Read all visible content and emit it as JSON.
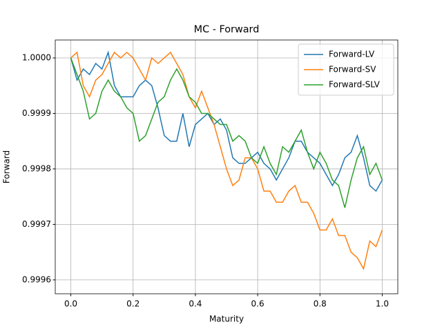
{
  "chart_data": {
    "type": "line",
    "title": "MC - Forward",
    "xlabel": "Maturity",
    "ylabel": "Forward",
    "x": [
      0,
      0.02,
      0.04,
      0.06,
      0.08,
      0.1,
      0.12,
      0.14,
      0.16,
      0.18,
      0.2,
      0.22,
      0.24,
      0.26,
      0.28,
      0.3,
      0.32,
      0.34,
      0.36,
      0.38,
      0.4,
      0.42,
      0.44,
      0.46,
      0.48,
      0.5,
      0.52,
      0.54,
      0.56,
      0.58,
      0.6,
      0.62,
      0.64,
      0.66,
      0.68,
      0.7,
      0.72,
      0.74,
      0.76,
      0.78,
      0.8,
      0.82,
      0.84,
      0.86,
      0.88,
      0.9,
      0.92,
      0.94,
      0.96,
      0.98,
      1
    ],
    "series": [
      {
        "name": "Forward-LV",
        "color": "#1f77b4",
        "values": [
          1.0,
          0.99996,
          0.99998,
          0.99997,
          0.99999,
          0.99998,
          1.00001,
          0.99995,
          0.99993,
          0.99993,
          0.99993,
          0.99995,
          0.99996,
          0.99995,
          0.99991,
          0.99986,
          0.99985,
          0.99985,
          0.9999,
          0.99984,
          0.99988,
          0.99989,
          0.9999,
          0.99988,
          0.99989,
          0.99987,
          0.99982,
          0.99981,
          0.99981,
          0.99982,
          0.99983,
          0.99981,
          0.9998,
          0.99978,
          0.9998,
          0.99982,
          0.99985,
          0.99985,
          0.99983,
          0.99982,
          0.99981,
          0.99979,
          0.99977,
          0.99979,
          0.99982,
          0.99983,
          0.99986,
          0.99982,
          0.99977,
          0.99976,
          0.99978
        ]
      },
      {
        "name": "Forward-SV",
        "color": "#ff7f0e",
        "values": [
          1.0,
          1.00001,
          0.99995,
          0.99993,
          0.99996,
          0.99997,
          0.99999,
          1.00001,
          1.0,
          1.00001,
          1.0,
          0.99998,
          0.99996,
          1.0,
          0.99999,
          1.0,
          1.00001,
          0.99999,
          0.99997,
          0.99993,
          0.99991,
          0.99994,
          0.99991,
          0.99988,
          0.99984,
          0.9998,
          0.99977,
          0.99978,
          0.99982,
          0.99982,
          0.9998,
          0.99976,
          0.99976,
          0.99974,
          0.99974,
          0.99976,
          0.99977,
          0.99974,
          0.99974,
          0.99972,
          0.99969,
          0.99969,
          0.99971,
          0.99968,
          0.99968,
          0.99965,
          0.99964,
          0.99962,
          0.99967,
          0.99966,
          0.99969
        ]
      },
      {
        "name": "Forward-SLV",
        "color": "#2ca02c",
        "values": [
          1.0,
          0.99997,
          0.99994,
          0.99989,
          0.9999,
          0.99994,
          0.99996,
          0.99994,
          0.99993,
          0.99991,
          0.9999,
          0.99985,
          0.99986,
          0.99989,
          0.99992,
          0.99993,
          0.99996,
          0.99998,
          0.99996,
          0.99993,
          0.99992,
          0.9999,
          0.9999,
          0.99989,
          0.99988,
          0.99988,
          0.99985,
          0.99986,
          0.99985,
          0.99982,
          0.99981,
          0.99984,
          0.99981,
          0.99979,
          0.99984,
          0.99983,
          0.99985,
          0.99987,
          0.99983,
          0.9998,
          0.99983,
          0.99981,
          0.99978,
          0.99977,
          0.99973,
          0.99978,
          0.99982,
          0.99984,
          0.99979,
          0.99981,
          0.99978
        ]
      }
    ],
    "xlim": [
      -0.05,
      1.05
    ],
    "ylim": [
      0.999575,
      1.0000323
    ],
    "xticks": [
      {
        "value": 0,
        "label": "0.0"
      },
      0.2,
      0.4,
      0.6,
      0.8,
      {
        "value": 1,
        "label": "1.0"
      }
    ],
    "yticks": [
      {
        "value": 0.9996,
        "label": "0.9996"
      },
      {
        "value": 0.9997,
        "label": "0.9997"
      },
      {
        "value": 0.9998,
        "label": "0.9998"
      },
      {
        "value": 0.9999,
        "label": "0.9999"
      },
      {
        "value": 1,
        "label": "1.0000"
      }
    ],
    "grid": true,
    "legend": "upper right"
  }
}
